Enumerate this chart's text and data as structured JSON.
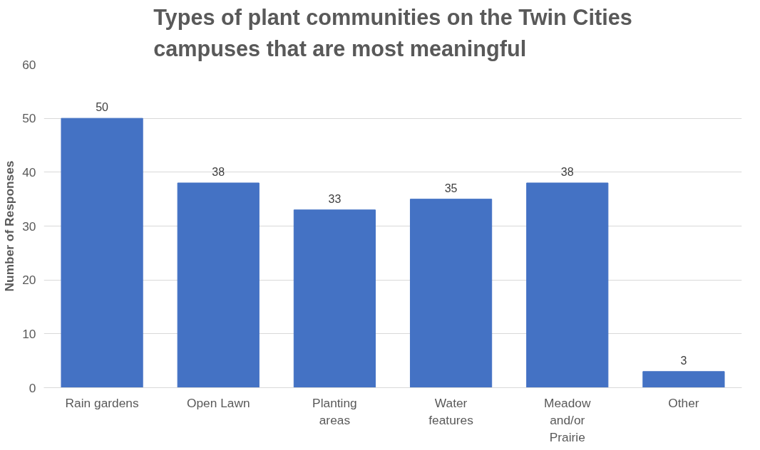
{
  "chart_data": {
    "type": "bar",
    "title": "Types of plant communities on the Twin Cities\ncampuses that are most meaningful",
    "ylabel": "Number of Responses",
    "categories": [
      "Rain gardens",
      "Open Lawn",
      "Planting\nareas",
      "Water\nfeatures",
      "Meadow\nand/or\nPrairie",
      "Other"
    ],
    "values": [
      50,
      38,
      33,
      35,
      38,
      3
    ],
    "color": "#4472c4",
    "ylim": [
      0,
      60
    ],
    "yticks": [
      0,
      10,
      20,
      30,
      40,
      50,
      60
    ],
    "grid": "y",
    "data_labels": true
  }
}
